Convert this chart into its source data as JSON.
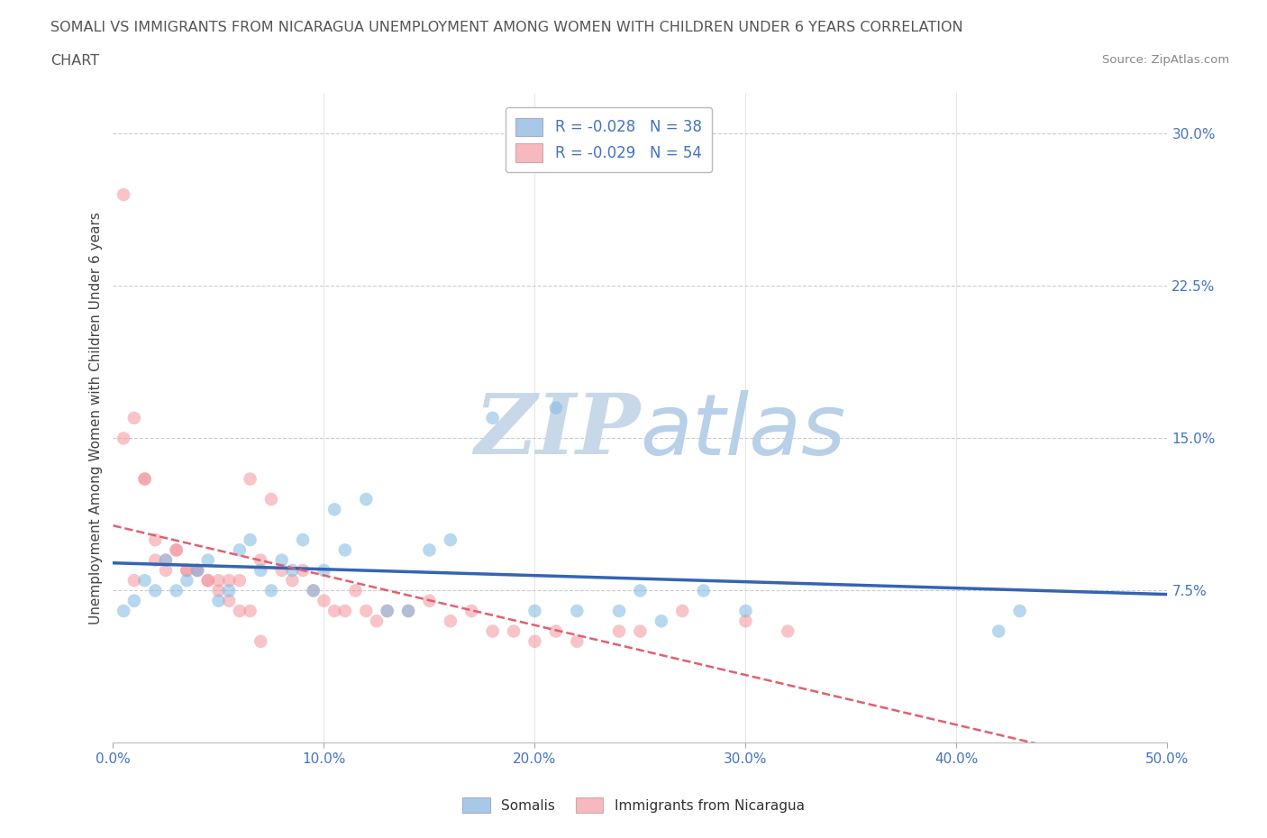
{
  "title_line1": "SOMALI VS IMMIGRANTS FROM NICARAGUA UNEMPLOYMENT AMONG WOMEN WITH CHILDREN UNDER 6 YEARS CORRELATION",
  "title_line2": "CHART",
  "source_text": "Source: ZipAtlas.com",
  "xlabel_ticks": [
    "0.0%",
    "10.0%",
    "20.0%",
    "30.0%",
    "40.0%",
    "50.0%"
  ],
  "xlabel_vals": [
    0.0,
    0.1,
    0.2,
    0.3,
    0.4,
    0.5
  ],
  "ylabel_ticks": [
    "7.5%",
    "15.0%",
    "22.5%",
    "30.0%"
  ],
  "ylabel_vals": [
    0.075,
    0.15,
    0.225,
    0.3
  ],
  "ylabel_label": "Unemployment Among Women with Children Under 6 years",
  "xlim": [
    0.0,
    0.5
  ],
  "ylim": [
    0.0,
    0.32
  ],
  "somali_color": "#7cb9e0",
  "nicaragua_color": "#f4949c",
  "somali_trend_color": "#3464b4",
  "nicaragua_trend_color": "#e06070",
  "background_color": "#ffffff",
  "grid_color": "#cccccc",
  "title_color": "#555555",
  "axis_color": "#4472c4",
  "watermark_color": "#ddeeff",
  "somali_x": [
    0.005,
    0.01,
    0.015,
    0.02,
    0.025,
    0.03,
    0.035,
    0.04,
    0.045,
    0.05,
    0.055,
    0.06,
    0.065,
    0.07,
    0.075,
    0.08,
    0.085,
    0.09,
    0.095,
    0.1,
    0.105,
    0.11,
    0.12,
    0.13,
    0.14,
    0.15,
    0.16,
    0.18,
    0.2,
    0.21,
    0.22,
    0.24,
    0.25,
    0.26,
    0.28,
    0.3,
    0.42,
    0.43
  ],
  "somali_y": [
    0.065,
    0.07,
    0.08,
    0.075,
    0.09,
    0.075,
    0.08,
    0.085,
    0.09,
    0.07,
    0.075,
    0.095,
    0.1,
    0.085,
    0.075,
    0.09,
    0.085,
    0.1,
    0.075,
    0.085,
    0.115,
    0.095,
    0.12,
    0.065,
    0.065,
    0.095,
    0.1,
    0.16,
    0.065,
    0.165,
    0.065,
    0.065,
    0.075,
    0.06,
    0.075,
    0.065,
    0.055,
    0.065
  ],
  "nicaragua_x": [
    0.005,
    0.01,
    0.015,
    0.02,
    0.025,
    0.03,
    0.035,
    0.04,
    0.045,
    0.05,
    0.055,
    0.06,
    0.065,
    0.07,
    0.075,
    0.08,
    0.085,
    0.09,
    0.095,
    0.1,
    0.105,
    0.11,
    0.115,
    0.12,
    0.125,
    0.13,
    0.14,
    0.15,
    0.16,
    0.17,
    0.18,
    0.19,
    0.2,
    0.21,
    0.22,
    0.24,
    0.25,
    0.27,
    0.3,
    0.32,
    0.005,
    0.01,
    0.015,
    0.02,
    0.025,
    0.03,
    0.035,
    0.04,
    0.045,
    0.05,
    0.055,
    0.06,
    0.065,
    0.07
  ],
  "nicaragua_y": [
    0.27,
    0.08,
    0.13,
    0.09,
    0.085,
    0.095,
    0.085,
    0.085,
    0.08,
    0.08,
    0.08,
    0.08,
    0.13,
    0.09,
    0.12,
    0.085,
    0.08,
    0.085,
    0.075,
    0.07,
    0.065,
    0.065,
    0.075,
    0.065,
    0.06,
    0.065,
    0.065,
    0.07,
    0.06,
    0.065,
    0.055,
    0.055,
    0.05,
    0.055,
    0.05,
    0.055,
    0.055,
    0.065,
    0.06,
    0.055,
    0.15,
    0.16,
    0.13,
    0.1,
    0.09,
    0.095,
    0.085,
    0.085,
    0.08,
    0.075,
    0.07,
    0.065,
    0.065,
    0.05
  ],
  "legend_label1": "R = -0.028   N = 38",
  "legend_label2": "R = -0.029   N = 54",
  "legend_color1": "#a8c8e8",
  "legend_color2": "#f8b8c0",
  "bottom_legend1": "Somalis",
  "bottom_legend2": "Immigrants from Nicaragua"
}
